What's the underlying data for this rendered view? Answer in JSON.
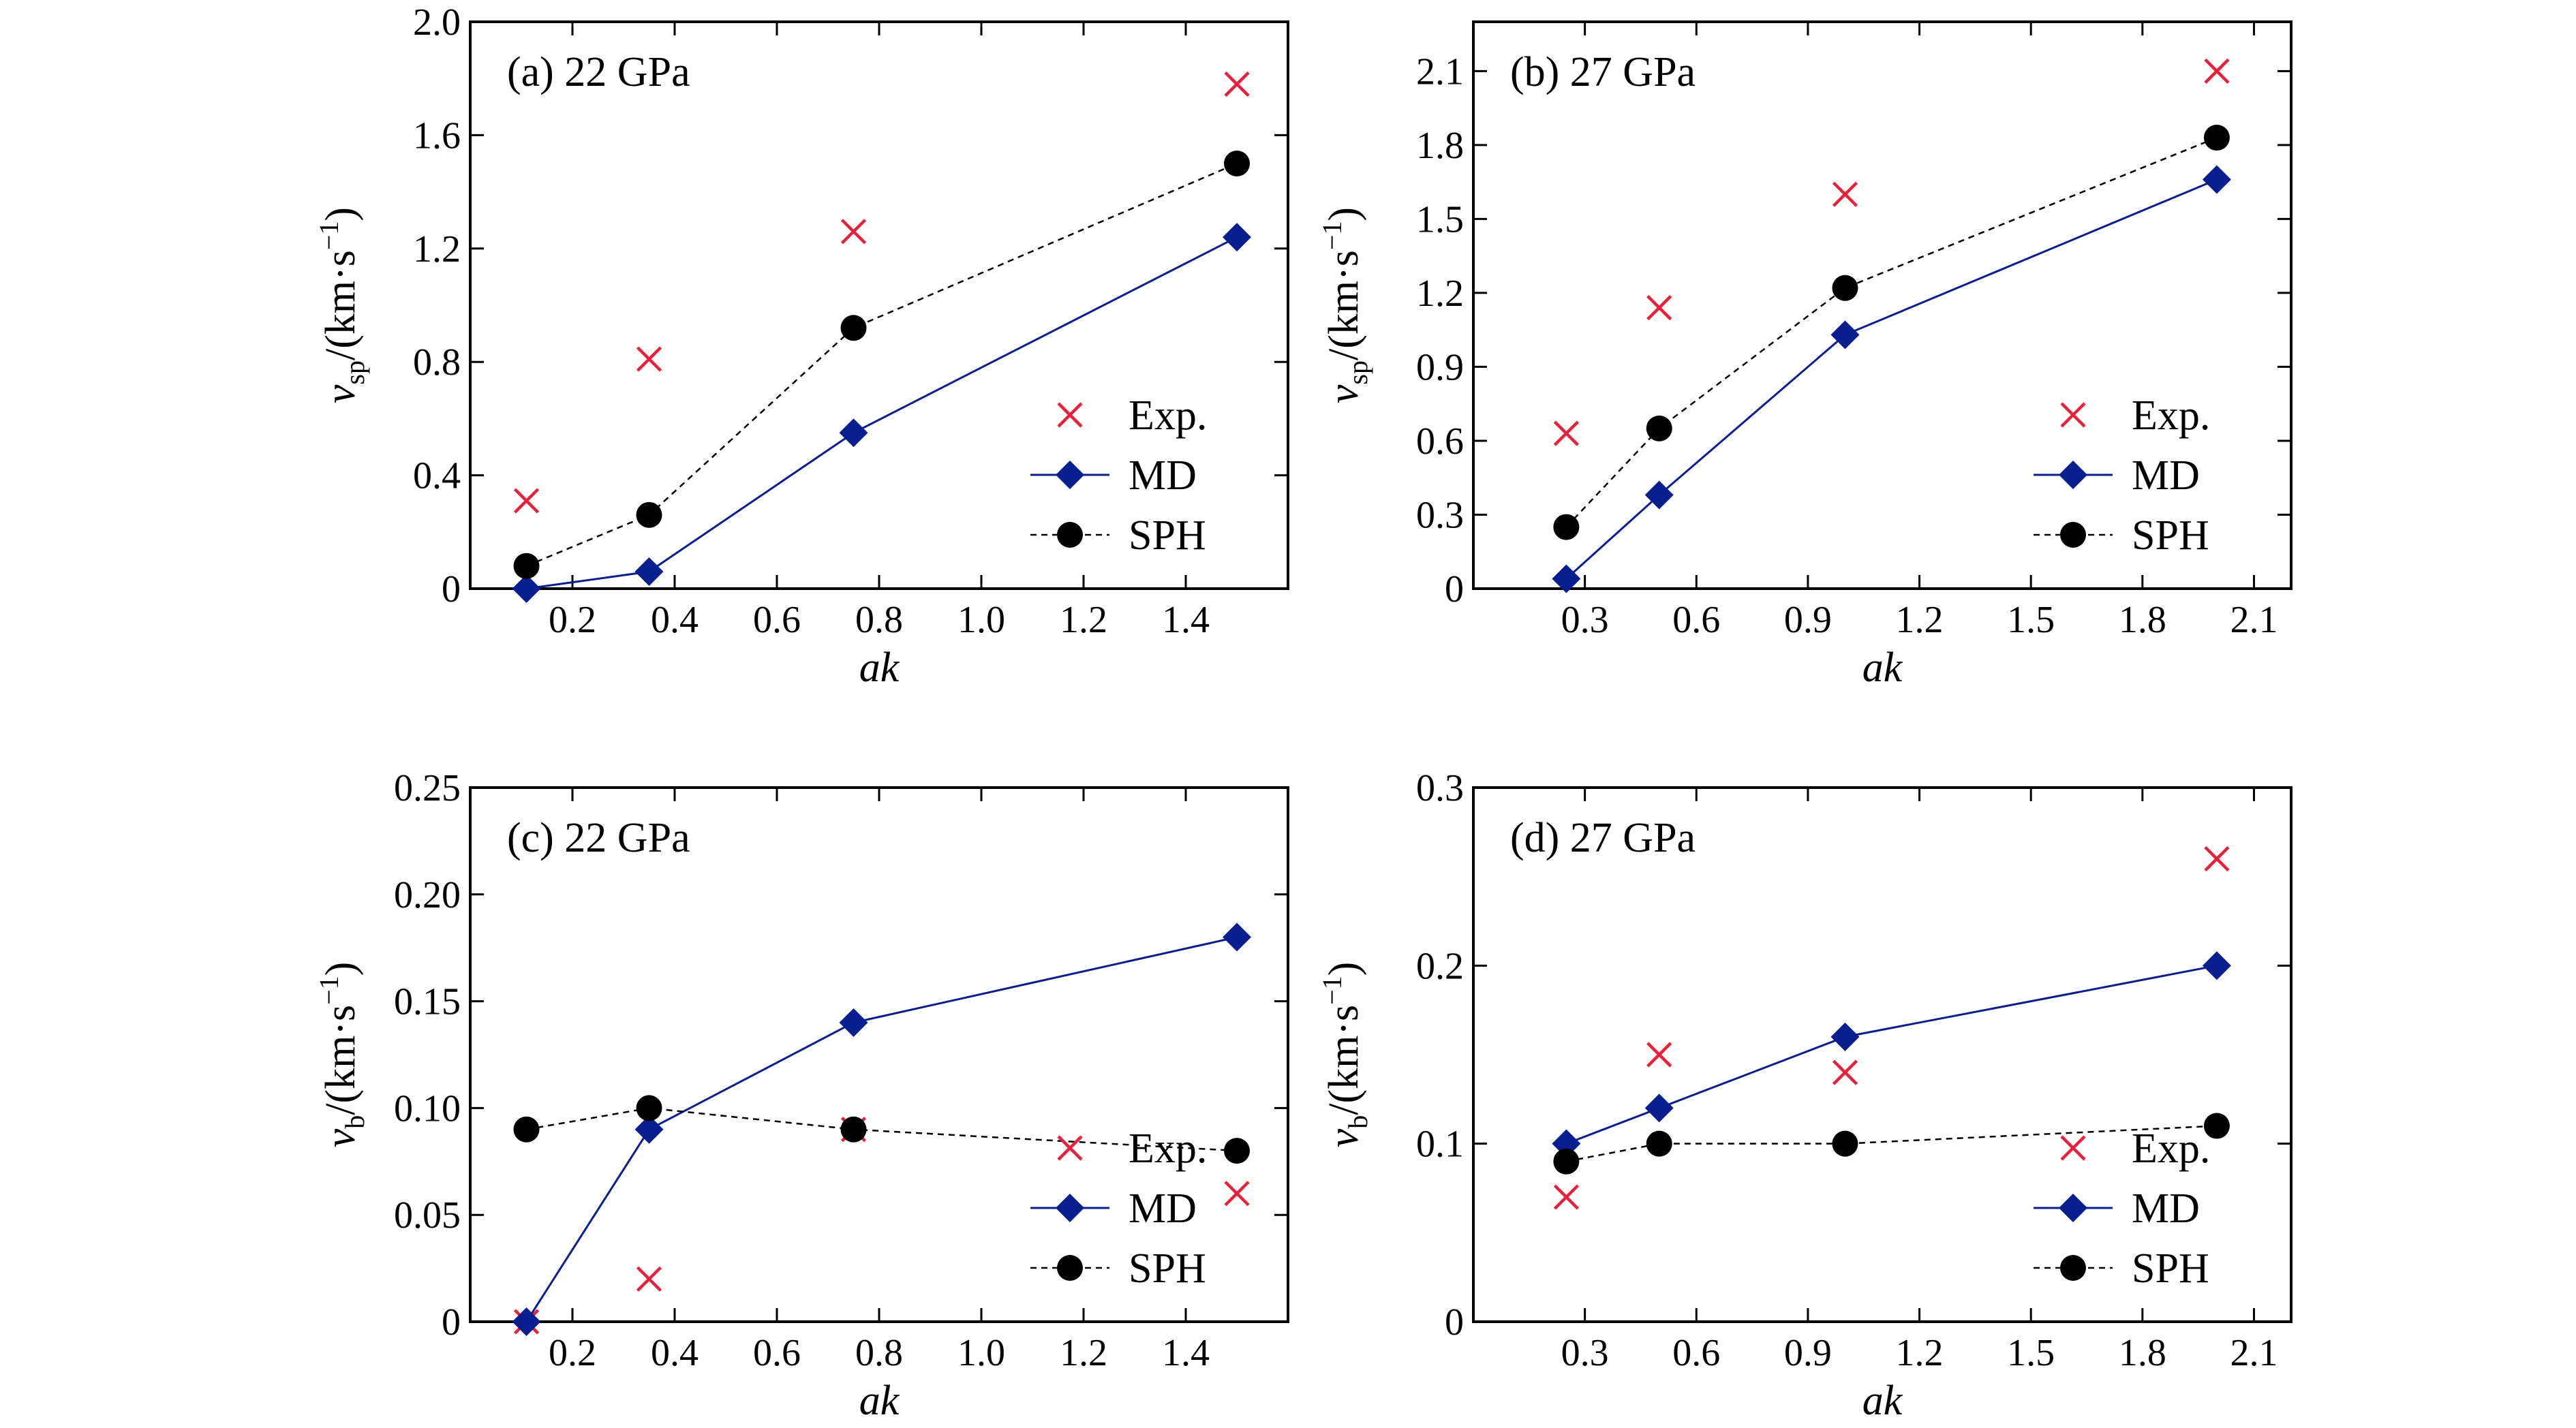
{
  "chart_data": [
    {
      "type": "line",
      "panel_label": "(a) 22 GPa",
      "xlabel": "ak",
      "ylabel": {
        "symbol": "v",
        "subscript": "sp",
        "unit": "/(km·s",
        "exponent": "−1",
        "close": ")"
      },
      "xlim": [
        0,
        1.6
      ],
      "ylim": [
        0,
        2.0
      ],
      "xticks": [
        0.2,
        0.4,
        0.6,
        0.8,
        1.0,
        1.2,
        1.4
      ],
      "xtick_labels": [
        "0.2",
        "0.4",
        "0.6",
        "0.8",
        "1.0",
        "1.2",
        "1.4"
      ],
      "yticks": [
        0,
        0.4,
        0.8,
        1.2,
        1.6,
        2.0
      ],
      "ytick_labels": [
        "0",
        "0.4",
        "0.8",
        "1.2",
        "1.6",
        "2.0"
      ],
      "legend_position": "lower-right",
      "series": [
        {
          "name": "Exp.",
          "marker": "x",
          "line": "none",
          "color": "#e8213a",
          "x": [
            0.11,
            0.35,
            0.75,
            1.5
          ],
          "y": [
            0.31,
            0.81,
            1.26,
            1.78
          ]
        },
        {
          "name": "MD",
          "marker": "diamond",
          "line": "solid",
          "color": "#0a1f8f",
          "x": [
            0.11,
            0.35,
            0.75,
            1.5
          ],
          "y": [
            0.0,
            0.06,
            0.55,
            1.24
          ]
        },
        {
          "name": "SPH",
          "marker": "circle",
          "line": "dashed",
          "color": "#000000",
          "x": [
            0.11,
            0.35,
            0.75,
            1.5
          ],
          "y": [
            0.08,
            0.26,
            0.92,
            1.5
          ]
        }
      ]
    },
    {
      "type": "line",
      "panel_label": "(b) 27 GPa",
      "xlabel": "ak",
      "ylabel": {
        "symbol": "v",
        "subscript": "sp",
        "unit": "/(km·s",
        "exponent": "−1",
        "close": ")"
      },
      "xlim": [
        0,
        2.2
      ],
      "ylim": [
        0,
        2.3
      ],
      "xticks": [
        0.3,
        0.6,
        0.9,
        1.2,
        1.5,
        1.8,
        2.1
      ],
      "xtick_labels": [
        "0.3",
        "0.6",
        "0.9",
        "1.2",
        "1.5",
        "1.8",
        "2.1"
      ],
      "yticks": [
        0,
        0.3,
        0.6,
        0.9,
        1.2,
        1.5,
        1.8,
        2.1
      ],
      "ytick_labels": [
        "0",
        "0.3",
        "0.6",
        "0.9",
        "1.2",
        "1.5",
        "1.8",
        "2.1"
      ],
      "legend_position": "lower-right",
      "series": [
        {
          "name": "Exp.",
          "marker": "x",
          "line": "none",
          "color": "#e8213a",
          "x": [
            0.25,
            0.5,
            1.0,
            2.0
          ],
          "y": [
            0.63,
            1.14,
            1.6,
            2.1
          ]
        },
        {
          "name": "MD",
          "marker": "diamond",
          "line": "solid",
          "color": "#0a1f8f",
          "x": [
            0.25,
            0.5,
            1.0,
            2.0
          ],
          "y": [
            0.04,
            0.38,
            1.03,
            1.66
          ]
        },
        {
          "name": "SPH",
          "marker": "circle",
          "line": "dashed",
          "color": "#000000",
          "x": [
            0.25,
            0.5,
            1.0,
            2.0
          ],
          "y": [
            0.25,
            0.65,
            1.22,
            1.83
          ]
        }
      ]
    },
    {
      "type": "line",
      "panel_label": "(c) 22 GPa",
      "xlabel": "ak",
      "ylabel": {
        "symbol": "v",
        "subscript": "b",
        "unit": "/(km·s",
        "exponent": "−1",
        "close": ")"
      },
      "xlim": [
        0,
        1.6
      ],
      "ylim": [
        0,
        0.25
      ],
      "xticks": [
        0.2,
        0.4,
        0.6,
        0.8,
        1.0,
        1.2,
        1.4
      ],
      "xtick_labels": [
        "0.2",
        "0.4",
        "0.6",
        "0.8",
        "1.0",
        "1.2",
        "1.4"
      ],
      "yticks": [
        0,
        0.05,
        0.1,
        0.15,
        0.2,
        0.25
      ],
      "ytick_labels": [
        "0",
        "0.05",
        "0.10",
        "0.15",
        "0.20",
        "0.25"
      ],
      "legend_position": "lower-right",
      "series": [
        {
          "name": "Exp.",
          "marker": "x",
          "line": "none",
          "color": "#e8213a",
          "x": [
            0.11,
            0.35,
            0.75,
            1.5
          ],
          "y": [
            0.0,
            0.02,
            0.09,
            0.06
          ]
        },
        {
          "name": "MD",
          "marker": "diamond",
          "line": "solid",
          "color": "#0a1f8f",
          "x": [
            0.11,
            0.35,
            0.75,
            1.5
          ],
          "y": [
            0.0,
            0.09,
            0.14,
            0.18
          ]
        },
        {
          "name": "SPH",
          "marker": "circle",
          "line": "dashed",
          "color": "#000000",
          "x": [
            0.11,
            0.35,
            0.75,
            1.5
          ],
          "y": [
            0.09,
            0.1,
            0.09,
            0.08
          ]
        }
      ]
    },
    {
      "type": "line",
      "panel_label": "(d) 27 GPa",
      "xlabel": "ak",
      "ylabel": {
        "symbol": "v",
        "subscript": "b",
        "unit": "/(km·s",
        "exponent": "−1",
        "close": ")"
      },
      "xlim": [
        0,
        2.2
      ],
      "ylim": [
        0,
        0.3
      ],
      "xticks": [
        0.3,
        0.6,
        0.9,
        1.2,
        1.5,
        1.8,
        2.1
      ],
      "xtick_labels": [
        "0.3",
        "0.6",
        "0.9",
        "1.2",
        "1.5",
        "1.8",
        "2.1"
      ],
      "yticks": [
        0,
        0.1,
        0.2,
        0.3
      ],
      "ytick_labels": [
        "0",
        "0.1",
        "0.2",
        "0.3"
      ],
      "legend_position": "lower-right",
      "series": [
        {
          "name": "Exp.",
          "marker": "x",
          "line": "none",
          "color": "#e8213a",
          "x": [
            0.25,
            0.5,
            1.0,
            2.0
          ],
          "y": [
            0.07,
            0.15,
            0.14,
            0.26
          ]
        },
        {
          "name": "MD",
          "marker": "diamond",
          "line": "solid",
          "color": "#0a1f8f",
          "x": [
            0.25,
            0.5,
            1.0,
            2.0
          ],
          "y": [
            0.1,
            0.12,
            0.16,
            0.2
          ]
        },
        {
          "name": "SPH",
          "marker": "circle",
          "line": "dashed",
          "color": "#000000",
          "x": [
            0.25,
            0.5,
            1.0,
            2.0
          ],
          "y": [
            0.09,
            0.1,
            0.1,
            0.11
          ]
        }
      ]
    }
  ]
}
